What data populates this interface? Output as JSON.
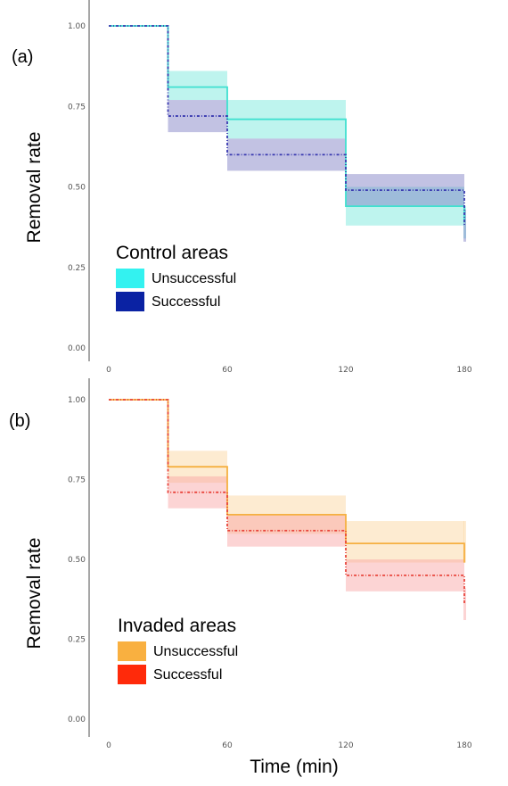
{
  "xlabel": "Time (min)",
  "chart_data": [
    {
      "type": "line",
      "panel_label": "(a)",
      "ylabel": "Removal rate",
      "xlim": [
        0,
        180
      ],
      "ylim": [
        0,
        1
      ],
      "x_ticks": [
        "0",
        "60",
        "120",
        "180"
      ],
      "y_ticks": [
        "0.00",
        "0.25",
        "0.50",
        "0.75",
        "1.00"
      ],
      "legend_title": "Control areas",
      "legend_placement": "bottom-left",
      "series": [
        {
          "name": "Unsuccessful",
          "color": "#40E0D0",
          "swatch_color": "#33F2F0",
          "band_color": "#6EE6DA",
          "dash": "none",
          "x": [
            0,
            30,
            60,
            120,
            180
          ],
          "y": [
            1.0,
            0.81,
            0.71,
            0.44,
            0.39
          ],
          "lo": [
            1.0,
            0.77,
            0.65,
            0.38,
            0.34
          ],
          "hi": [
            1.0,
            0.86,
            0.77,
            0.5,
            0.44
          ]
        },
        {
          "name": "Successful",
          "color": "#3A3AB0",
          "swatch_color": "#0A22A3",
          "band_color": "#7878C2",
          "dash": "3 2 1 2",
          "x": [
            0,
            30,
            60,
            120,
            180
          ],
          "y": [
            1.0,
            0.72,
            0.6,
            0.49,
            0.38
          ],
          "lo": [
            1.0,
            0.67,
            0.55,
            0.44,
            0.33
          ],
          "hi": [
            1.0,
            0.77,
            0.65,
            0.54,
            0.43
          ]
        }
      ]
    },
    {
      "type": "line",
      "panel_label": "(b)",
      "ylabel": "Removal rate",
      "xlim": [
        0,
        180
      ],
      "ylim": [
        0,
        1
      ],
      "x_ticks": [
        "0",
        "60",
        "120",
        "180"
      ],
      "y_ticks": [
        "0.00",
        "0.25",
        "0.50",
        "0.75",
        "1.00"
      ],
      "legend_title": "Invaded areas",
      "legend_placement": "bottom-left",
      "series": [
        {
          "name": "Unsuccessful",
          "color": "#F5B041",
          "swatch_color": "#F9B040",
          "band_color": "#FBD39A",
          "dash": "none",
          "x": [
            0,
            30,
            60,
            120,
            180
          ],
          "y": [
            1.0,
            0.79,
            0.64,
            0.55,
            0.49
          ],
          "lo": [
            1.0,
            0.74,
            0.58,
            0.49,
            0.49
          ],
          "hi": [
            1.0,
            0.84,
            0.7,
            0.62,
            0.62
          ]
        },
        {
          "name": "Successful",
          "color": "#E8453C",
          "swatch_color": "#FF2A0A",
          "band_color": "#F9A0A0",
          "dash": "3 2 1 2",
          "x": [
            0,
            30,
            60,
            120,
            180
          ],
          "y": [
            1.0,
            0.71,
            0.59,
            0.45,
            0.36
          ],
          "lo": [
            1.0,
            0.66,
            0.54,
            0.4,
            0.31
          ],
          "hi": [
            1.0,
            0.76,
            0.64,
            0.5,
            0.41
          ]
        }
      ]
    }
  ]
}
